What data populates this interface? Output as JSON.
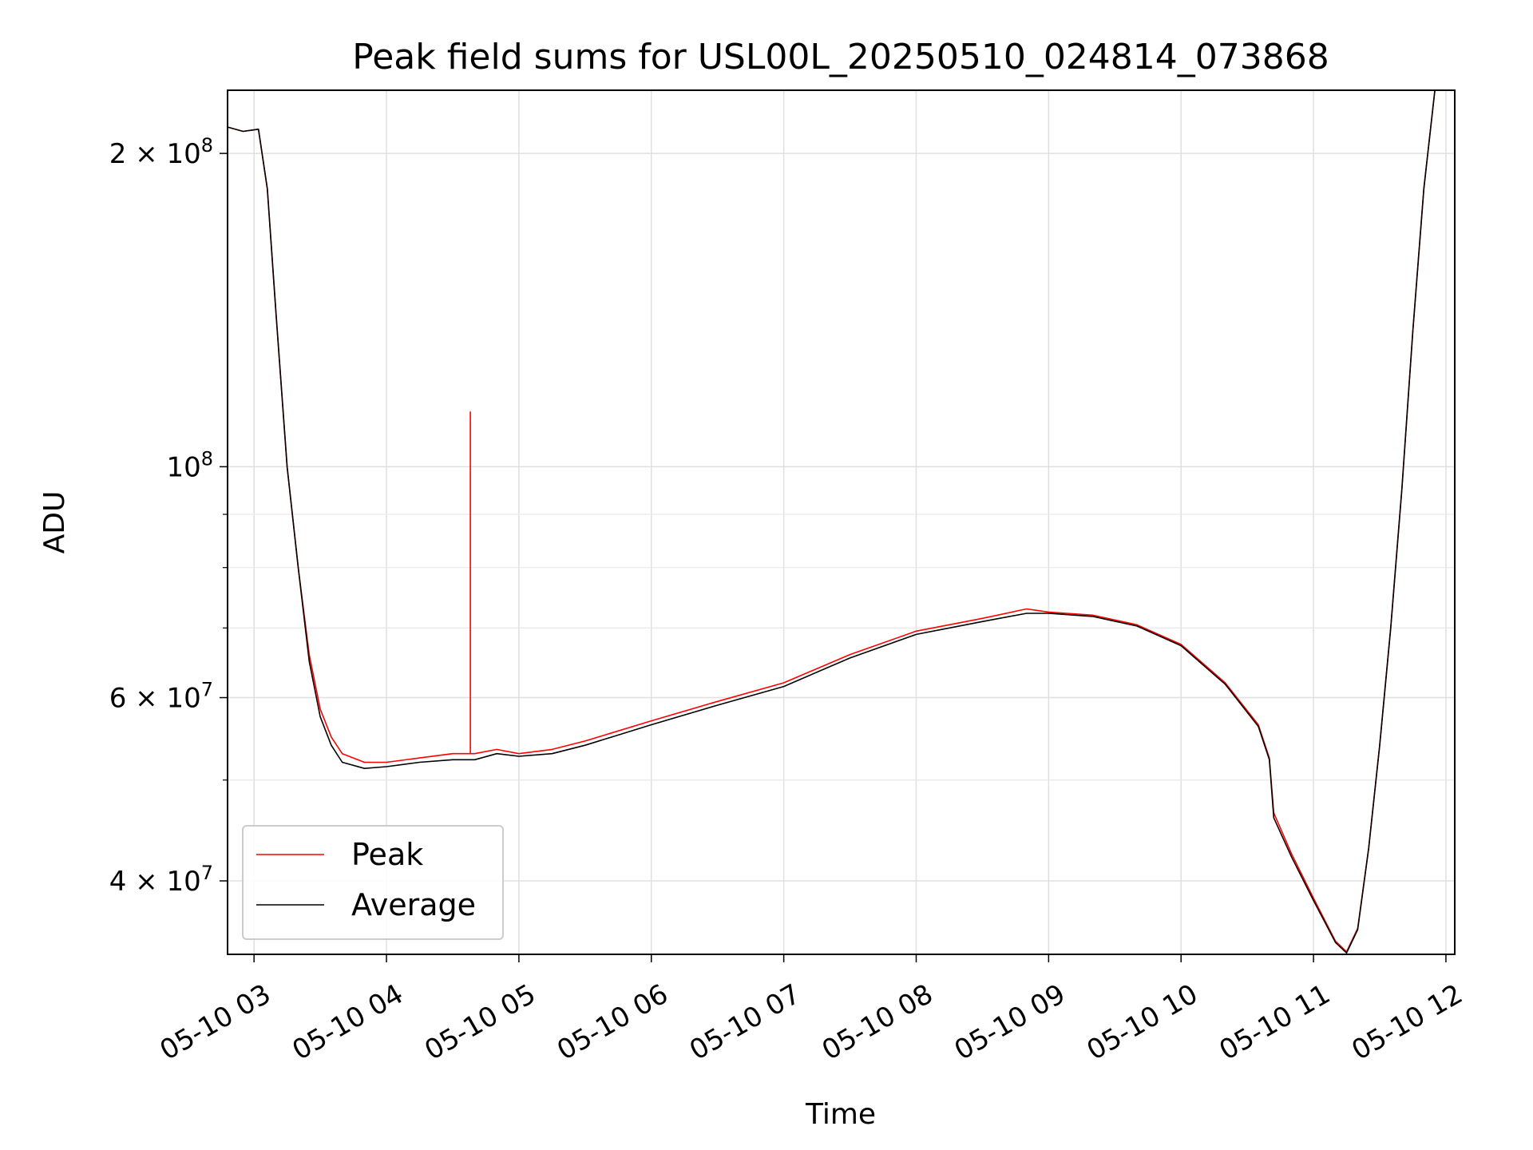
{
  "chart_data": {
    "type": "line",
    "title": "Peak field sums for USL00L_20250510_024814_073868",
    "xlabel": "Time",
    "ylabel": "ADU",
    "yscale": "log",
    "xlim": [
      "2025-05-10 02:48",
      "2025-05-10 12:04"
    ],
    "ylim": [
      34000000,
      230000000
    ],
    "grid": true,
    "legend_position": "lower-left",
    "x_ticks": [
      "05-10 03",
      "05-10 04",
      "05-10 05",
      "05-10 06",
      "05-10 07",
      "05-10 08",
      "05-10 09",
      "05-10 10",
      "05-10 11",
      "05-10 12"
    ],
    "y_major_ticks": [
      {
        "value": 40000000,
        "mantissa": "4",
        "exponent": "7"
      },
      {
        "value": 60000000,
        "mantissa": "6",
        "exponent": "7"
      },
      {
        "value": 100000000,
        "mantissa": "",
        "exponent": "8"
      },
      {
        "value": 200000000,
        "mantissa": "2",
        "exponent": "8"
      }
    ],
    "y_minor_ticks": [
      50000000,
      70000000,
      80000000,
      90000000
    ],
    "series": [
      {
        "name": "Peak",
        "color": "#ff0000",
        "points": [
          [
            "2025-05-10 02:48",
            212000000
          ],
          [
            "2025-05-10 02:55",
            210000000
          ],
          [
            "2025-05-10 03:02",
            211000000
          ],
          [
            "2025-05-10 03:06",
            185000000
          ],
          [
            "2025-05-10 03:10",
            140000000
          ],
          [
            "2025-05-10 03:15",
            100000000
          ],
          [
            "2025-05-10 03:20",
            80000000
          ],
          [
            "2025-05-10 03:25",
            66000000
          ],
          [
            "2025-05-10 03:30",
            58500000
          ],
          [
            "2025-05-10 03:35",
            55000000
          ],
          [
            "2025-05-10 03:40",
            53000000
          ],
          [
            "2025-05-10 03:50",
            52000000
          ],
          [
            "2025-05-10 04:00",
            52000000
          ],
          [
            "2025-05-10 04:15",
            52500000
          ],
          [
            "2025-05-10 04:30",
            53000000
          ],
          [
            "2025-05-10 04:40",
            53000000
          ],
          [
            "2025-05-10 04:50",
            53500000
          ],
          [
            "2025-05-10 05:00",
            53000000
          ],
          [
            "2025-05-10 05:15",
            53500000
          ],
          [
            "2025-05-10 05:30",
            54500000
          ],
          [
            "2025-05-10 06:00",
            57000000
          ],
          [
            "2025-05-10 06:30",
            59500000
          ],
          [
            "2025-05-10 07:00",
            62000000
          ],
          [
            "2025-05-10 07:30",
            66000000
          ],
          [
            "2025-05-10 08:00",
            69500000
          ],
          [
            "2025-05-10 08:30",
            71500000
          ],
          [
            "2025-05-10 08:50",
            73000000
          ],
          [
            "2025-05-10 09:00",
            72500000
          ],
          [
            "2025-05-10 09:20",
            72000000
          ],
          [
            "2025-05-10 09:40",
            70500000
          ],
          [
            "2025-05-10 10:00",
            67500000
          ],
          [
            "2025-05-10 10:20",
            62000000
          ],
          [
            "2025-05-10 10:35",
            56500000
          ],
          [
            "2025-05-10 10:40",
            52500000
          ],
          [
            "2025-05-10 10:42",
            46500000
          ],
          [
            "2025-05-10 10:50",
            42500000
          ],
          [
            "2025-05-10 11:00",
            38500000
          ],
          [
            "2025-05-10 11:10",
            35000000
          ],
          [
            "2025-05-10 11:15",
            34200000
          ],
          [
            "2025-05-10 11:20",
            36000000
          ],
          [
            "2025-05-10 11:25",
            43000000
          ],
          [
            "2025-05-10 11:30",
            54000000
          ],
          [
            "2025-05-10 11:35",
            70000000
          ],
          [
            "2025-05-10 11:40",
            95000000
          ],
          [
            "2025-05-10 11:45",
            135000000
          ],
          [
            "2025-05-10 11:50",
            185000000
          ],
          [
            "2025-05-10 11:55",
            230000000
          ]
        ],
        "spikes": [
          {
            "x": "2025-05-10 04:38",
            "y": 113000000
          }
        ]
      },
      {
        "name": "Average",
        "color": "#000000",
        "points": [
          [
            "2025-05-10 02:48",
            212000000
          ],
          [
            "2025-05-10 02:55",
            210000000
          ],
          [
            "2025-05-10 03:02",
            211000000
          ],
          [
            "2025-05-10 03:06",
            185000000
          ],
          [
            "2025-05-10 03:10",
            140000000
          ],
          [
            "2025-05-10 03:15",
            100000000
          ],
          [
            "2025-05-10 03:20",
            80000000
          ],
          [
            "2025-05-10 03:25",
            65000000
          ],
          [
            "2025-05-10 03:30",
            57500000
          ],
          [
            "2025-05-10 03:35",
            54000000
          ],
          [
            "2025-05-10 03:40",
            52000000
          ],
          [
            "2025-05-10 03:50",
            51300000
          ],
          [
            "2025-05-10 04:00",
            51500000
          ],
          [
            "2025-05-10 04:15",
            52000000
          ],
          [
            "2025-05-10 04:30",
            52300000
          ],
          [
            "2025-05-10 04:40",
            52300000
          ],
          [
            "2025-05-10 04:50",
            53000000
          ],
          [
            "2025-05-10 05:00",
            52700000
          ],
          [
            "2025-05-10 05:15",
            53000000
          ],
          [
            "2025-05-10 05:30",
            54000000
          ],
          [
            "2025-05-10 06:00",
            56500000
          ],
          [
            "2025-05-10 06:30",
            59000000
          ],
          [
            "2025-05-10 07:00",
            61500000
          ],
          [
            "2025-05-10 07:30",
            65500000
          ],
          [
            "2025-05-10 08:00",
            69000000
          ],
          [
            "2025-05-10 08:30",
            71000000
          ],
          [
            "2025-05-10 08:50",
            72300000
          ],
          [
            "2025-05-10 09:00",
            72300000
          ],
          [
            "2025-05-10 09:20",
            71800000
          ],
          [
            "2025-05-10 09:40",
            70300000
          ],
          [
            "2025-05-10 10:00",
            67300000
          ],
          [
            "2025-05-10 10:20",
            61800000
          ],
          [
            "2025-05-10 10:35",
            56300000
          ],
          [
            "2025-05-10 10:40",
            52300000
          ],
          [
            "2025-05-10 10:42",
            46000000
          ],
          [
            "2025-05-10 10:50",
            42200000
          ],
          [
            "2025-05-10 11:00",
            38300000
          ],
          [
            "2025-05-10 11:10",
            34900000
          ],
          [
            "2025-05-10 11:15",
            34100000
          ],
          [
            "2025-05-10 11:20",
            35900000
          ],
          [
            "2025-05-10 11:25",
            43000000
          ],
          [
            "2025-05-10 11:30",
            54000000
          ],
          [
            "2025-05-10 11:35",
            70000000
          ],
          [
            "2025-05-10 11:40",
            95000000
          ],
          [
            "2025-05-10 11:45",
            135000000
          ],
          [
            "2025-05-10 11:50",
            185000000
          ],
          [
            "2025-05-10 11:55",
            230000000
          ]
        ]
      }
    ]
  }
}
